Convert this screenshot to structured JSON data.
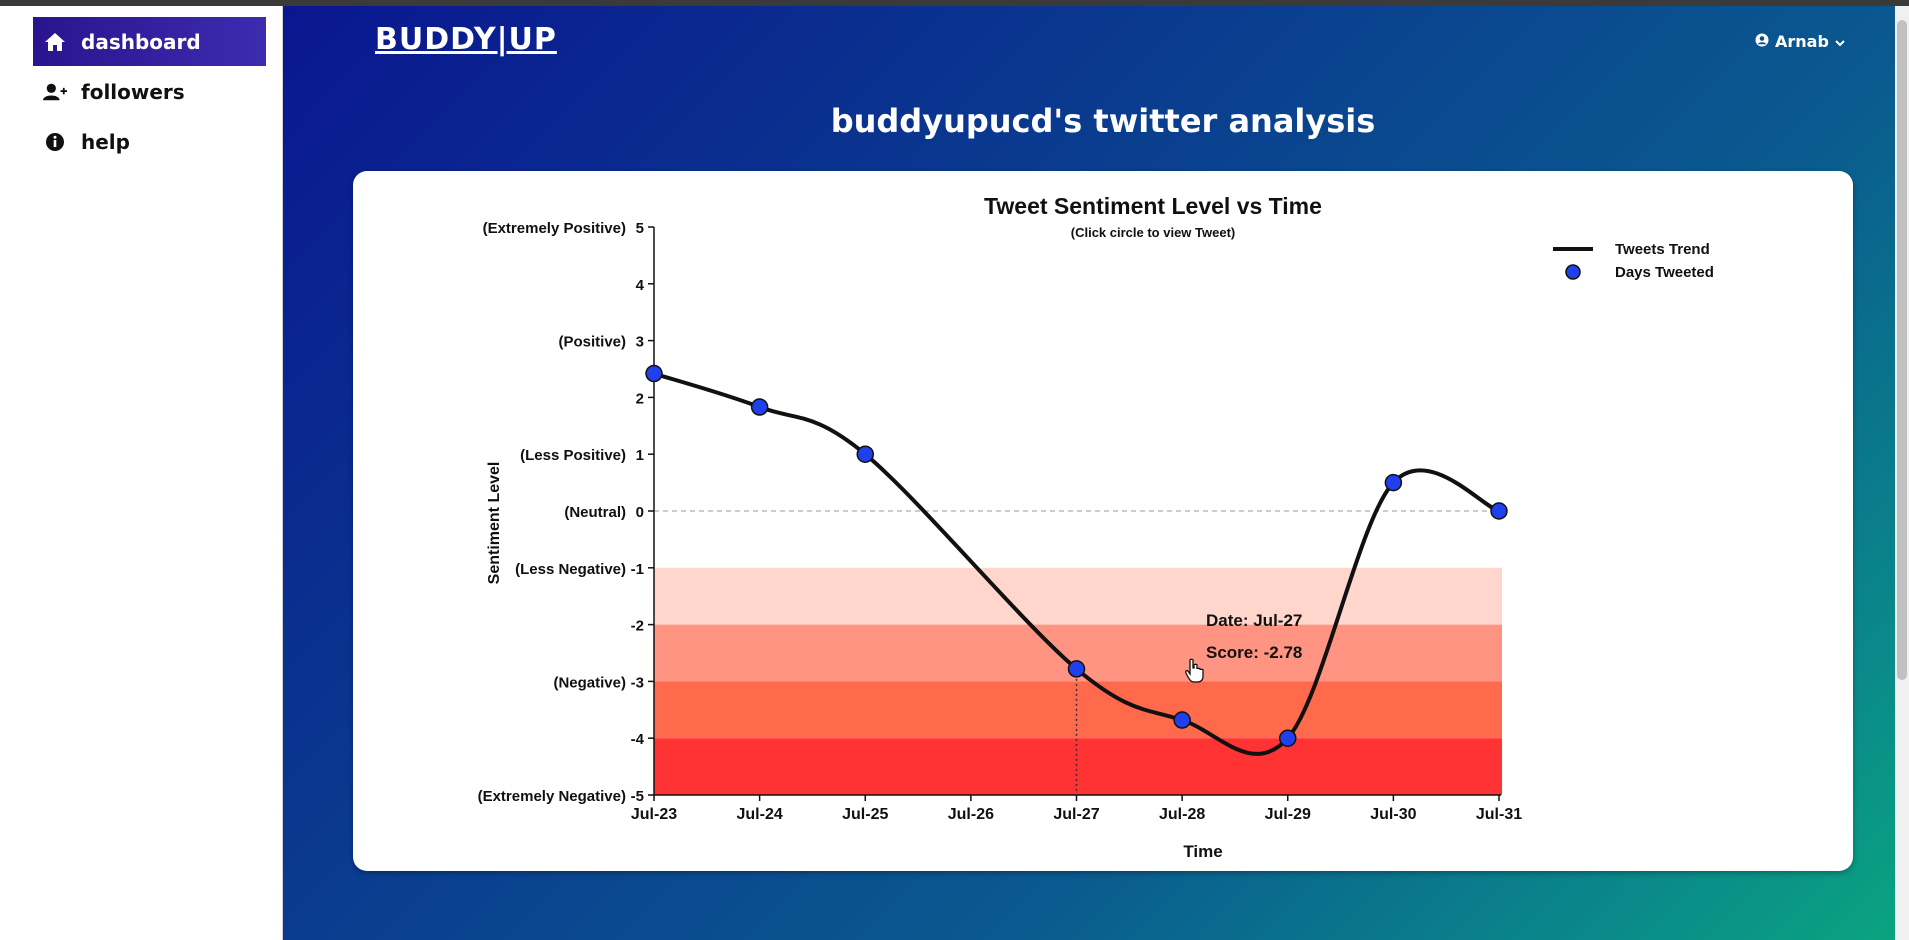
{
  "sidebar": {
    "items": [
      {
        "label": "dashboard",
        "icon": "home-icon",
        "active": true
      },
      {
        "label": "followers",
        "icon": "user-plus-icon",
        "active": false
      },
      {
        "label": "help",
        "icon": "info-circle-icon",
        "active": false
      }
    ]
  },
  "header": {
    "logo": "BUDDY|UP",
    "user_name": "Arnab",
    "user_icon": "user-circle-icon",
    "dropdown_icon": "chevron-down-icon"
  },
  "page_title": "buddyupucd's twitter analysis",
  "colors": {
    "sidebar_active": "#2a148e",
    "point_fill": "#2040ee",
    "band_less_negative": "#ffd6cc",
    "band_negative_1": "#ff9483",
    "band_negative_2": "#ff6a4d",
    "band_extremely_negative": "#ff3333"
  },
  "chart_data": {
    "type": "line",
    "title": "Tweet Sentiment Level vs Time",
    "subtitle": "(Click circle to view Tweet)",
    "xlabel": "Time",
    "ylabel": "Sentiment Level",
    "ylim": [
      -5,
      5
    ],
    "categories": [
      "Jul-23",
      "Jul-24",
      "Jul-25",
      "Jul-26",
      "Jul-27",
      "Jul-28",
      "Jul-29",
      "Jul-30",
      "Jul-31"
    ],
    "y_ticks": [
      5,
      4,
      3,
      2,
      1,
      0,
      -1,
      -2,
      -3,
      -4,
      -5
    ],
    "y_tick_labels": {
      "5": "(Extremely Positive)",
      "3": "(Positive)",
      "1": "(Less Positive)",
      "0": "(Neutral)",
      "-1": "(Less Negative)",
      "-3": "(Negative)",
      "-5": "(Extremely Negative)"
    },
    "series": [
      {
        "name": "Tweets Trend",
        "style": "line"
      },
      {
        "name": "Days Tweeted",
        "style": "points"
      }
    ],
    "points": [
      {
        "x": "Jul-23",
        "y": 2.42
      },
      {
        "x": "Jul-24",
        "y": 1.83
      },
      {
        "x": "Jul-25",
        "y": 1.0
      },
      {
        "x": "Jul-27",
        "y": -2.78
      },
      {
        "x": "Jul-28",
        "y": -3.68
      },
      {
        "x": "Jul-29",
        "y": -4.0
      },
      {
        "x": "Jul-30",
        "y": 0.5
      },
      {
        "x": "Jul-31",
        "y": 0.0
      }
    ],
    "bands": [
      {
        "from": -1,
        "to": -2
      },
      {
        "from": -2,
        "to": -3
      },
      {
        "from": -3,
        "to": -4
      },
      {
        "from": -4,
        "to": -5
      }
    ],
    "tooltip": {
      "date_label": "Date: Jul-27",
      "score_label": "Score: -2.78",
      "x": "Jul-27",
      "y": -2.78
    },
    "legend_position": "top-right",
    "zero_line": true
  }
}
